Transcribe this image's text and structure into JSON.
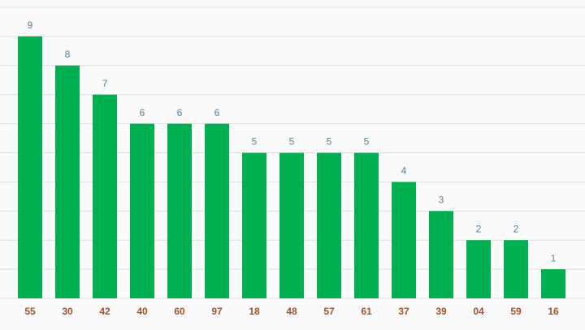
{
  "chart_data": {
    "type": "bar",
    "categories": [
      "55",
      "30",
      "42",
      "40",
      "60",
      "97",
      "18",
      "48",
      "57",
      "61",
      "37",
      "39",
      "04",
      "59",
      "16"
    ],
    "values": [
      9,
      8,
      7,
      6,
      6,
      6,
      5,
      5,
      5,
      5,
      4,
      3,
      2,
      2,
      1
    ],
    "color": "#00b050",
    "ylim": [
      0,
      10
    ],
    "yticks": [
      0,
      1,
      2,
      3,
      4,
      5,
      6,
      7,
      8,
      9,
      10
    ],
    "grid": true
  }
}
